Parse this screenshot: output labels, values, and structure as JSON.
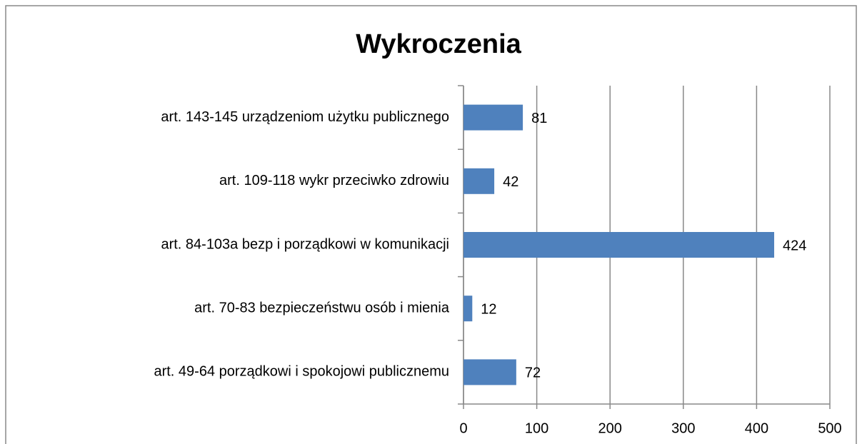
{
  "chart_data": {
    "type": "bar",
    "orientation": "horizontal",
    "title": "Wykroczenia",
    "categories": [
      "art. 143-145 urządzeniom użytku publicznego",
      "art. 109-118 wykr przeciwko zdrowiu",
      "art. 84-103a bezp i porządkowi w komunikacji",
      "art. 70-83 bezpieczeństwu osób i mienia",
      "art. 49-64 porządkowi i spokojowi publicznemu"
    ],
    "values": [
      81,
      42,
      424,
      12,
      72
    ],
    "color": "#4f81bd",
    "xlim": [
      0,
      500
    ],
    "xticks": [
      0,
      100,
      200,
      300,
      400,
      500
    ],
    "grid": true
  }
}
